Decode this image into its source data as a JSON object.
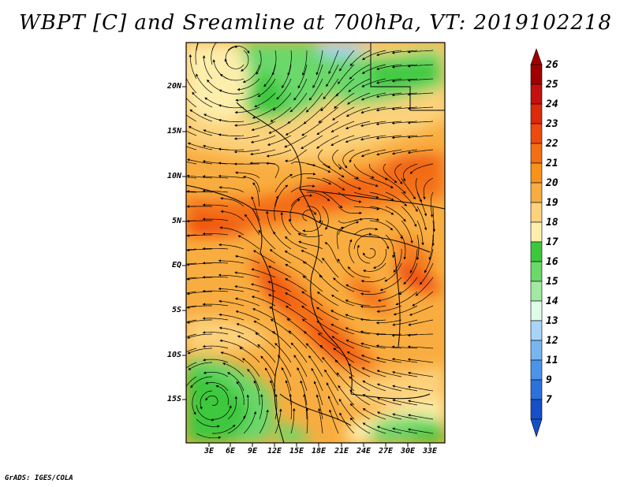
{
  "title": "WBPT [C] and Sreamline at 700hPa, VT: 2019102218",
  "lat_labels": [
    "20N",
    "15N",
    "10N",
    "5N",
    "EQ",
    "5S",
    "10S",
    "15S"
  ],
  "lon_labels": [
    "3E",
    "6E",
    "9E",
    "12E",
    "15E",
    "18E",
    "21E",
    "24E",
    "27E",
    "30E",
    "33E"
  ],
  "colorbar": {
    "labels": [
      "26",
      "25",
      "24",
      "23",
      "22",
      "21",
      "20",
      "19",
      "18",
      "17",
      "16",
      "15",
      "14",
      "13",
      "12",
      "11",
      "9",
      "7"
    ],
    "colors": [
      "#a00000",
      "#c41010",
      "#dc2a0a",
      "#ee4a10",
      "#f46e14",
      "#f7921a",
      "#f9ad40",
      "#fcd27c",
      "#fdeeab",
      "#3cc83c",
      "#6ad86a",
      "#a2eaa2",
      "#e0fbe8",
      "#a8d4fa",
      "#78b6f2",
      "#4c94ea",
      "#2c72dc",
      "#1650c8"
    ]
  },
  "credit": "GrADS: IGES/COLA"
}
